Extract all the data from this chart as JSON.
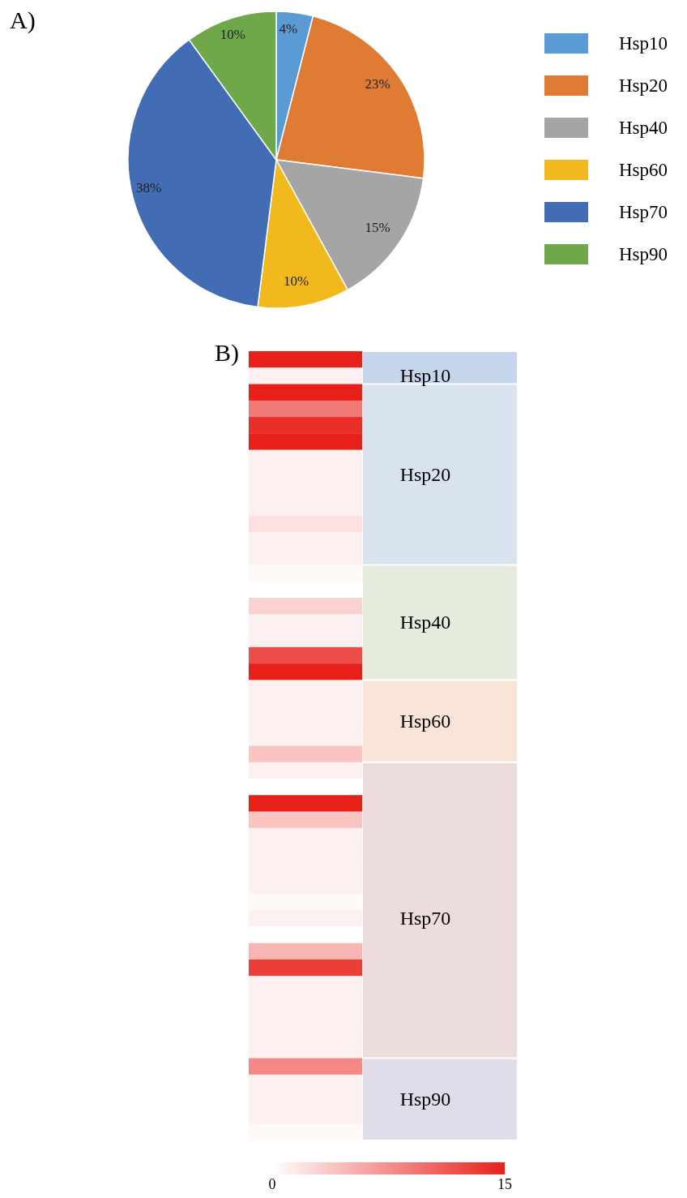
{
  "chart_data": [
    {
      "type": "pie",
      "title": "A)",
      "categories": [
        "Hsp10",
        "Hsp20",
        "Hsp40",
        "Hsp60",
        "Hsp70",
        "Hsp90"
      ],
      "values": [
        4,
        23,
        15,
        10,
        38,
        10
      ],
      "colors": [
        "#5b9bd5",
        "#e07b34",
        "#a5a5a5",
        "#f2b91e",
        "#426db5",
        "#6fa84a"
      ],
      "value_labels": [
        "4%",
        "23%",
        "15%",
        "10%",
        "38%",
        "10%"
      ],
      "legend": "right"
    },
    {
      "type": "heatmap",
      "title": "B)",
      "categories": [
        null
      ],
      "y_categories": [
        null,
        null,
        null,
        null,
        null,
        null,
        null,
        null,
        null,
        null,
        null,
        null,
        null,
        null,
        null,
        null,
        null,
        null,
        null,
        null,
        null,
        null,
        null,
        null,
        null,
        null,
        null,
        null,
        null,
        null,
        null,
        null,
        null,
        null,
        null,
        null,
        null,
        null,
        null,
        null,
        null,
        null,
        null,
        null,
        null,
        null,
        null,
        null
      ],
      "y2_categories": [
        null,
        "Hsp10",
        null,
        null,
        null,
        null,
        null,
        "Hsp20",
        null,
        null,
        null,
        null,
        null,
        null,
        null,
        null,
        "Hsp40",
        null,
        null,
        null,
        null,
        null,
        "Hsp60",
        null,
        null,
        null,
        null,
        null,
        null,
        null,
        null,
        null,
        null,
        null,
        "Hsp70",
        null,
        null,
        null,
        null,
        null,
        null,
        null,
        null,
        null,
        null,
        "Hsp90",
        null,
        null
      ],
      "cells": [
        [
          15
        ],
        [
          1
        ],
        [
          15
        ],
        [
          9
        ],
        [
          14
        ],
        [
          15
        ],
        [
          1
        ],
        [
          1
        ],
        [
          1
        ],
        [
          1
        ],
        [
          2
        ],
        [
          1
        ],
        [
          1
        ],
        [
          0.5
        ],
        [
          0
        ],
        [
          3
        ],
        [
          1
        ],
        [
          1
        ],
        [
          12
        ],
        [
          15
        ],
        [
          1
        ],
        [
          1
        ],
        [
          1
        ],
        [
          1
        ],
        [
          4
        ],
        [
          1
        ],
        [
          0
        ],
        [
          15
        ],
        [
          4
        ],
        [
          1
        ],
        [
          1
        ],
        [
          1
        ],
        [
          1
        ],
        [
          0.5
        ],
        [
          1
        ],
        [
          0
        ],
        [
          5
        ],
        [
          13
        ],
        [
          1
        ],
        [
          1
        ],
        [
          1
        ],
        [
          1
        ],
        [
          1
        ],
        [
          8
        ],
        [
          1
        ],
        [
          1
        ],
        [
          1
        ],
        [
          0.5
        ]
      ],
      "clim": [
        0,
        15
      ],
      "cticks": [
        0,
        15
      ]
    }
  ]
}
